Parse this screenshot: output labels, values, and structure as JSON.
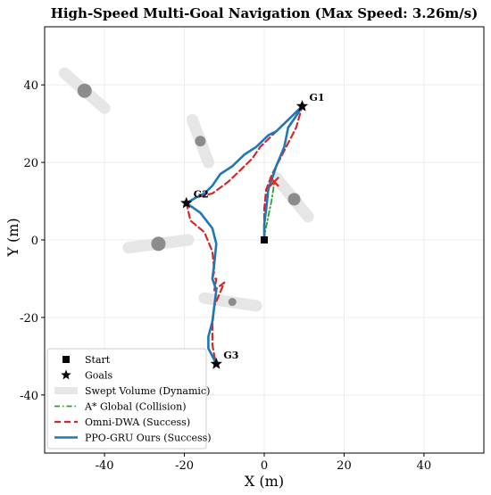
{
  "chart_data": {
    "type": "scatter",
    "title": "High-Speed Multi-Goal Navigation (Max Speed: 3.26m/s)",
    "xlabel": "X (m)",
    "ylabel": "Y (m)",
    "xlim": [
      -55,
      55
    ],
    "ylim": [
      -55,
      55
    ],
    "xticks": [
      -40,
      -20,
      0,
      20,
      40
    ],
    "yticks": [
      -40,
      -20,
      0,
      20,
      40
    ],
    "grid": true,
    "legend_position": "lower-left",
    "start": {
      "x": 0,
      "y": 0
    },
    "goals": [
      {
        "label": "G1",
        "x": 9.5,
        "y": 34.5
      },
      {
        "label": "G2",
        "x": -19.5,
        "y": 9.5
      },
      {
        "label": "G3",
        "x": -12,
        "y": -32
      }
    ],
    "collision_marker": {
      "x": 2.5,
      "y": 15,
      "color": "#e8202a"
    },
    "obstacles": [
      {
        "x": -45,
        "y": 38.5,
        "x0": -50,
        "y0": 43,
        "x1": -40,
        "y1": 34
      },
      {
        "x": -16,
        "y": 25.5,
        "x0": -18,
        "y0": 31,
        "x1": -14,
        "y1": 20
      },
      {
        "x": 7.5,
        "y": 10.5,
        "x0": 3,
        "y0": 16,
        "x1": 11,
        "y1": 6
      },
      {
        "x": -26.5,
        "y": -1,
        "x0": -34,
        "y0": -2,
        "x1": -19,
        "y1": 0
      },
      {
        "x": -8,
        "y": -16,
        "x0": -15,
        "y0": -15,
        "x1": -2,
        "y1": -17
      }
    ],
    "series": [
      {
        "name": "A* Global (Collision)",
        "color": "#2ca02c",
        "style": "dashdot",
        "x": [
          0,
          0.3,
          0.8,
          1.3,
          1.8,
          2.2,
          2.5
        ],
        "y": [
          0,
          2.5,
          5,
          7.5,
          10,
          12.5,
          15
        ]
      },
      {
        "name": "Omni-DWA (Success)",
        "color": "#d62728",
        "style": "dashed",
        "x": [
          0,
          0,
          0,
          0.5,
          2,
          4,
          6,
          8,
          9.5,
          6,
          2,
          -1,
          -3,
          -6,
          -9,
          -13,
          -17,
          -19.5,
          -18.5,
          -15,
          -13,
          -12.5,
          -13,
          -12,
          -12.5,
          -10,
          -12.5,
          -13,
          -13,
          -12.5,
          -12
        ],
        "y": [
          0,
          3,
          8,
          13,
          17,
          21,
          25,
          29,
          34.5,
          31,
          27,
          24,
          21,
          18,
          15,
          12,
          11,
          9.5,
          5,
          2,
          -3,
          -8,
          -10,
          -10,
          -13,
          -11,
          -17,
          -22,
          -27,
          -30,
          -32
        ]
      },
      {
        "name": "PPO-GRU Ours (Success)",
        "color": "#1f77b4",
        "style": "solid",
        "x": [
          0,
          0,
          0.5,
          1,
          3,
          5,
          6,
          8,
          9.5,
          6,
          3,
          1,
          -2,
          -5,
          -8,
          -11,
          -13,
          -15,
          -17,
          -19.5,
          -16,
          -13,
          -12,
          -12.5,
          -13,
          -12,
          -12.5,
          -13,
          -14,
          -14,
          -13,
          -12
        ],
        "y": [
          0,
          4,
          8,
          13,
          19,
          24,
          29,
          32,
          34.5,
          31,
          28,
          27,
          24,
          22,
          19,
          17,
          14,
          12,
          11,
          9.5,
          7,
          3,
          -1,
          -6,
          -10,
          -13,
          -17,
          -21,
          -25,
          -28,
          -30,
          -32
        ]
      }
    ],
    "legend": [
      {
        "label": "Start",
        "marker": "square",
        "color": "#000000"
      },
      {
        "label": "Goals",
        "marker": "star",
        "color": "#000000"
      },
      {
        "label": "Swept Volume (Dynamic)",
        "marker": "band",
        "color": "#e6e6e6"
      },
      {
        "label": "A* Global (Collision)",
        "marker": "dashdot",
        "color": "#2ca02c"
      },
      {
        "label": "Omni-DWA (Success)",
        "marker": "dashed",
        "color": "#d62728"
      },
      {
        "label": "PPO-GRU Ours (Success)",
        "marker": "solid",
        "color": "#1f77b4"
      }
    ]
  }
}
